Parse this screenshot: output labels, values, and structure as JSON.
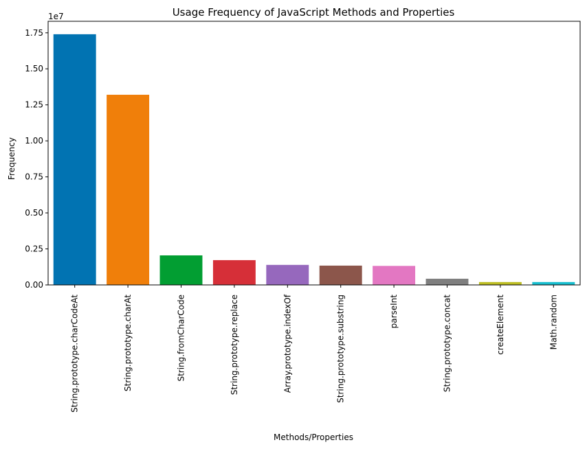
{
  "chart_data": {
    "type": "bar",
    "title": "Usage Frequency of JavaScript Methods and Properties",
    "xlabel": "Methods/Properties",
    "ylabel": "Frequency",
    "offset_label": "1e7",
    "categories": [
      "String.prototype.charCodeAt",
      "String.prototype.charAt",
      "String.fromCharCode",
      "String.prototype.replace",
      "Array.prototype.indexOf",
      "String.prototype.substring",
      "parseInt",
      "String.prototype.concat",
      "createElement",
      "Math.random"
    ],
    "values": [
      17400000,
      13200000,
      2050000,
      1720000,
      1390000,
      1340000,
      1320000,
      430000,
      200000,
      200000
    ],
    "colors": [
      "#0173b2",
      "#f07f0a",
      "#029e32",
      "#d62f38",
      "#9668bd",
      "#8c564b",
      "#e377c2",
      "#7f7f7f",
      "#bcbd22",
      "#17becf"
    ],
    "ylim": [
      0,
      18300000
    ],
    "yticks": [
      0,
      2500000,
      5000000,
      7500000,
      10000000,
      12500000,
      15000000,
      17500000
    ],
    "ytick_labels": [
      "0.00",
      "0.25",
      "0.50",
      "0.75",
      "1.00",
      "1.25",
      "1.50",
      "1.75"
    ],
    "grid": false,
    "legend": "none"
  }
}
